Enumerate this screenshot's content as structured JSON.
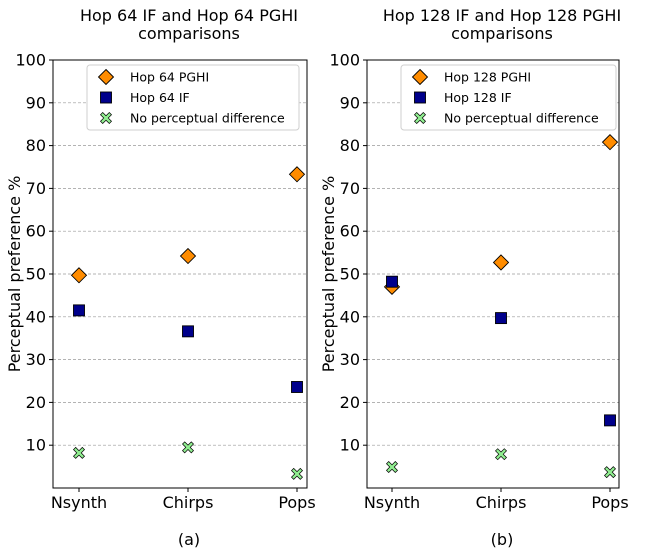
{
  "chart_data": [
    {
      "type": "scatter",
      "title": "Hop 64 IF and Hop 64 PGHI comparisons",
      "title_lines": [
        "Hop 64 IF and Hop 64 PGHI",
        "comparisons"
      ],
      "ylabel": "Perceptual preference %",
      "xlabel": "",
      "caption": "(a)",
      "categories": [
        "Nsynth",
        "Chirps",
        "Pops"
      ],
      "ylim": [
        0,
        100
      ],
      "yticks": [
        10,
        20,
        30,
        40,
        50,
        60,
        70,
        80,
        90,
        100
      ],
      "grid": "horizontal dashed",
      "legend_position": "top",
      "series": [
        {
          "name": "Hop 64 PGHI",
          "marker": "diamond",
          "color": "#ff8c00",
          "values": [
            49.7,
            54.2,
            73.3
          ]
        },
        {
          "name": "Hop 64 IF",
          "marker": "square",
          "color": "#00008b",
          "values": [
            41.5,
            36.6,
            23.6
          ]
        },
        {
          "name": "No perceptual difference",
          "marker": "x",
          "color": "#90ee90",
          "values": [
            8.2,
            9.5,
            3.3
          ]
        }
      ]
    },
    {
      "type": "scatter",
      "title": "Hop 128 IF and Hop 128 PGHI comparisons",
      "title_lines": [
        "Hop 128 IF and Hop 128 PGHI",
        "comparisons"
      ],
      "ylabel": "Perceptual preference %",
      "xlabel": "",
      "caption": "(b)",
      "categories": [
        "Nsynth",
        "Chirps",
        "Pops"
      ],
      "ylim": [
        0,
        100
      ],
      "yticks": [
        10,
        20,
        30,
        40,
        50,
        60,
        70,
        80,
        90,
        100
      ],
      "grid": "horizontal dashed",
      "legend_position": "top",
      "series": [
        {
          "name": "Hop 128 PGHI",
          "marker": "diamond",
          "color": "#ff8c00",
          "values": [
            47.0,
            52.7,
            80.8
          ]
        },
        {
          "name": "Hop 128 IF",
          "marker": "square",
          "color": "#00008b",
          "values": [
            48.2,
            39.7,
            15.8
          ]
        },
        {
          "name": "No perceptual difference",
          "marker": "x",
          "color": "#90ee90",
          "values": [
            4.9,
            7.9,
            3.7
          ]
        }
      ]
    }
  ]
}
